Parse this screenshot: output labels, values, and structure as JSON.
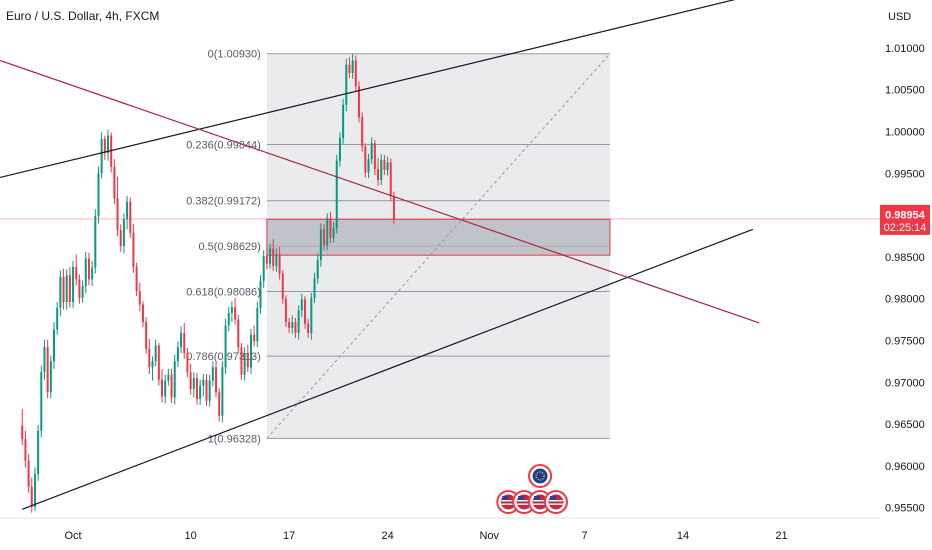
{
  "header": {
    "title": "Euro / U.S. Dollar, 4h, FXCM"
  },
  "colors": {
    "up": "#089981",
    "down": "#f23645",
    "fib_bg": "#e6e7ea",
    "fib_line": "#9598a1",
    "zone_fill": "#b2b5be",
    "zone_border": "#f23645",
    "channel": "#131722",
    "downtrend": "#a52a3a",
    "price_badge": "#f23645"
  },
  "chart_data": {
    "type": "candlestick",
    "title": "Euro / U.S. Dollar, 4h, FXCM",
    "currency_label": "USD",
    "y_ticks": [
      "1.01000",
      "1.00500",
      "1.00000",
      "0.99500",
      "0.98500",
      "0.98000",
      "0.97500",
      "0.97000",
      "0.96500",
      "0.96000",
      "0.95500"
    ],
    "y_tick_values": [
      1.01,
      1.005,
      1.0,
      0.995,
      0.985,
      0.98,
      0.975,
      0.97,
      0.965,
      0.96,
      0.955
    ],
    "ylim": [
      0.954,
      1.0125
    ],
    "x_ticks": [
      "Oct",
      "10",
      "17",
      "24",
      "Nov",
      "7",
      "14",
      "21"
    ],
    "x_tick_index": [
      16,
      53,
      84,
      115,
      147,
      177,
      208,
      239
    ],
    "x_range": [
      -7,
      270
    ],
    "last_price": "0.98954",
    "last_price_value": 0.98954,
    "countdown": "02:25:14",
    "fibonacci": {
      "levels": [
        {
          "label": "0(1.00930)",
          "value": 1.0093
        },
        {
          "label": "0.236(0.99844)",
          "value": 0.99844
        },
        {
          "label": "0.382(0.99172)",
          "value": 0.99172
        },
        {
          "label": "0.5(0.98629)",
          "value": 0.98629
        },
        {
          "label": "0.618(0.98086)",
          "value": 0.98086
        },
        {
          "label": "0.786(0.97313)",
          "value": 0.97313
        },
        {
          "label": "1(0.96328)",
          "value": 0.96328
        }
      ],
      "from_index": 77,
      "to_index": 185
    },
    "zone": {
      "from_index": 77,
      "to_index": 185,
      "top": 0.9895,
      "bottom": 0.9852
    },
    "trendlines": [
      {
        "name": "channel-upper",
        "points": [
          [
            -7,
            0.9945
          ],
          [
            231,
            1.0164
          ]
        ]
      },
      {
        "name": "channel-lower",
        "points": [
          [
            0,
            0.9548
          ],
          [
            230,
            0.9883
          ]
        ]
      },
      {
        "name": "downtrend",
        "points": [
          [
            -7,
            1.0085
          ],
          [
            232,
            0.9771
          ]
        ]
      },
      {
        "name": "fib-diagonal",
        "points": [
          [
            77,
            0.96328
          ],
          [
            185,
            1.0093
          ]
        ]
      }
    ],
    "event_icons": [
      {
        "index": 153,
        "row": 0
      },
      {
        "index": 158,
        "row": 0
      },
      {
        "index": 163,
        "row": 0
      },
      {
        "index": 168,
        "row": 0
      },
      {
        "index": 163,
        "row": 1
      }
    ],
    "candles_ohlc": [
      [
        0.9648,
        0.9668,
        0.9625,
        0.9632
      ],
      [
        0.9632,
        0.9642,
        0.9598,
        0.9606
      ],
      [
        0.9606,
        0.9614,
        0.9568,
        0.9575
      ],
      [
        0.9575,
        0.9586,
        0.9544,
        0.9551
      ],
      [
        0.9551,
        0.9598,
        0.9546,
        0.959
      ],
      [
        0.959,
        0.9649,
        0.9582,
        0.9642
      ],
      [
        0.9642,
        0.972,
        0.9634,
        0.9712
      ],
      [
        0.9712,
        0.9751,
        0.9703,
        0.9742
      ],
      [
        0.9742,
        0.9751,
        0.9681,
        0.9688
      ],
      [
        0.9688,
        0.9732,
        0.9681,
        0.9725
      ],
      [
        0.9725,
        0.9772,
        0.9716,
        0.9763
      ],
      [
        0.9763,
        0.9796,
        0.9757,
        0.9789
      ],
      [
        0.9789,
        0.9834,
        0.9779,
        0.9826
      ],
      [
        0.9826,
        0.9836,
        0.9787,
        0.9796
      ],
      [
        0.9796,
        0.9835,
        0.9787,
        0.9828
      ],
      [
        0.9828,
        0.9838,
        0.9789,
        0.9796
      ],
      [
        0.9796,
        0.9845,
        0.9789,
        0.9838
      ],
      [
        0.9838,
        0.9853,
        0.9816,
        0.9823
      ],
      [
        0.9823,
        0.9829,
        0.9794,
        0.9801
      ],
      [
        0.9801,
        0.9822,
        0.9795,
        0.9815
      ],
      [
        0.9815,
        0.9856,
        0.9806,
        0.9848
      ],
      [
        0.9848,
        0.9855,
        0.9816,
        0.9823
      ],
      [
        0.9823,
        0.9845,
        0.9815,
        0.9837
      ],
      [
        0.9837,
        0.9907,
        0.983,
        0.9899
      ],
      [
        0.9899,
        0.9958,
        0.989,
        0.995
      ],
      [
        0.995,
        0.9999,
        0.9944,
        0.9991
      ],
      [
        0.9991,
        0.9995,
        0.9966,
        0.9974
      ],
      [
        0.9974,
        1.0002,
        0.9965,
        0.9995
      ],
      [
        0.9995,
        0.9999,
        0.9951,
        0.9958
      ],
      [
        0.9958,
        0.9967,
        0.9913,
        0.992
      ],
      [
        0.992,
        0.9946,
        0.9875,
        0.9882
      ],
      [
        0.9882,
        0.9889,
        0.9856,
        0.9863
      ],
      [
        0.9863,
        0.9902,
        0.9854,
        0.9895
      ],
      [
        0.9895,
        0.9923,
        0.9883,
        0.9916
      ],
      [
        0.9916,
        0.9921,
        0.9873,
        0.9879
      ],
      [
        0.9879,
        0.9889,
        0.9831,
        0.9838
      ],
      [
        0.9838,
        0.9843,
        0.9803,
        0.9809
      ],
      [
        0.9809,
        0.9819,
        0.9785,
        0.9793
      ],
      [
        0.9793,
        0.9797,
        0.9766,
        0.9772
      ],
      [
        0.9772,
        0.9778,
        0.9734,
        0.974
      ],
      [
        0.974,
        0.9752,
        0.971,
        0.9718
      ],
      [
        0.9718,
        0.9731,
        0.9702,
        0.9725
      ],
      [
        0.9725,
        0.9751,
        0.9719,
        0.9744
      ],
      [
        0.9744,
        0.9747,
        0.9696,
        0.9703
      ],
      [
        0.9703,
        0.9716,
        0.9676,
        0.9683
      ],
      [
        0.9683,
        0.9709,
        0.9675,
        0.9702
      ],
      [
        0.9702,
        0.9716,
        0.9696,
        0.9709
      ],
      [
        0.9709,
        0.9716,
        0.9675,
        0.9682
      ],
      [
        0.9682,
        0.9733,
        0.9674,
        0.9725
      ],
      [
        0.9725,
        0.9749,
        0.9718,
        0.9742
      ],
      [
        0.9742,
        0.9767,
        0.9735,
        0.9759
      ],
      [
        0.9759,
        0.9771,
        0.9728,
        0.9735
      ],
      [
        0.9735,
        0.9741,
        0.9706,
        0.9712
      ],
      [
        0.9712,
        0.9722,
        0.9685,
        0.9692
      ],
      [
        0.9692,
        0.9712,
        0.9682,
        0.9705
      ],
      [
        0.9705,
        0.9711,
        0.9673,
        0.968
      ],
      [
        0.968,
        0.9703,
        0.9673,
        0.9696
      ],
      [
        0.9696,
        0.971,
        0.9683,
        0.9703
      ],
      [
        0.9703,
        0.971,
        0.9672,
        0.9678
      ],
      [
        0.9678,
        0.9709,
        0.9671,
        0.9702
      ],
      [
        0.9702,
        0.9725,
        0.9695,
        0.9718
      ],
      [
        0.9718,
        0.9724,
        0.9682,
        0.9688
      ],
      [
        0.9688,
        0.9693,
        0.9653,
        0.966
      ],
      [
        0.966,
        0.9725,
        0.9652,
        0.9718
      ],
      [
        0.9718,
        0.9776,
        0.971,
        0.9768
      ],
      [
        0.9768,
        0.979,
        0.9761,
        0.9783
      ],
      [
        0.9783,
        0.9797,
        0.9772,
        0.979
      ],
      [
        0.979,
        0.9801,
        0.9769,
        0.9775
      ],
      [
        0.9775,
        0.9781,
        0.9735,
        0.9742
      ],
      [
        0.9742,
        0.9747,
        0.9703,
        0.9709
      ],
      [
        0.9709,
        0.9742,
        0.9702,
        0.9735
      ],
      [
        0.9735,
        0.9745,
        0.9712,
        0.9718
      ],
      [
        0.9718,
        0.9764,
        0.971,
        0.9757
      ],
      [
        0.9757,
        0.9768,
        0.9743,
        0.9749
      ],
      [
        0.9749,
        0.9796,
        0.9742,
        0.9789
      ],
      [
        0.9789,
        0.9828,
        0.9782,
        0.9821
      ],
      [
        0.9821,
        0.9858,
        0.9813,
        0.9851
      ],
      [
        0.9851,
        0.9861,
        0.9835,
        0.9842
      ],
      [
        0.9842,
        0.9866,
        0.9836,
        0.986
      ],
      [
        0.986,
        0.9871,
        0.9833,
        0.9839
      ],
      [
        0.9839,
        0.986,
        0.9832,
        0.9853
      ],
      [
        0.9853,
        0.9862,
        0.9823,
        0.983
      ],
      [
        0.983,
        0.9834,
        0.9794,
        0.98
      ],
      [
        0.98,
        0.9804,
        0.9766,
        0.9772
      ],
      [
        0.9772,
        0.9777,
        0.9759,
        0.9765
      ],
      [
        0.9765,
        0.978,
        0.9758,
        0.9772
      ],
      [
        0.9772,
        0.9777,
        0.9753,
        0.9759
      ],
      [
        0.9759,
        0.9792,
        0.9751,
        0.9786
      ],
      [
        0.9786,
        0.9806,
        0.9778,
        0.9799
      ],
      [
        0.9799,
        0.9803,
        0.9764,
        0.977
      ],
      [
        0.977,
        0.9776,
        0.9753,
        0.9759
      ],
      [
        0.9759,
        0.9807,
        0.9751,
        0.9801
      ],
      [
        0.9801,
        0.9831,
        0.9795,
        0.9824
      ],
      [
        0.9824,
        0.9854,
        0.9818,
        0.9846
      ],
      [
        0.9846,
        0.989,
        0.9838,
        0.9883
      ],
      [
        0.9883,
        0.9889,
        0.9858,
        0.9864
      ],
      [
        0.9864,
        0.9902,
        0.9858,
        0.9896
      ],
      [
        0.9896,
        0.9904,
        0.9866,
        0.9873
      ],
      [
        0.9873,
        0.9891,
        0.9867,
        0.9884
      ],
      [
        0.9884,
        0.9972,
        0.9878,
        0.9965
      ],
      [
        0.9965,
        0.9999,
        0.9958,
        0.9992
      ],
      [
        0.9992,
        1.0039,
        0.9985,
        1.0032
      ],
      [
        1.0032,
        1.0087,
        1.0024,
        1.008
      ],
      [
        1.008,
        1.0089,
        1.0064,
        1.007
      ],
      [
        1.007,
        1.0093,
        1.0063,
        1.0085
      ],
      [
        1.0085,
        1.0091,
        1.0048,
        1.0054
      ],
      [
        1.0054,
        1.006,
        1.0011,
        1.0017
      ],
      [
        1.0017,
        1.0023,
        0.9976,
        0.9982
      ],
      [
        0.9982,
        0.9986,
        0.9945,
        0.9951
      ],
      [
        0.9951,
        0.9973,
        0.9944,
        0.9967
      ],
      [
        0.9967,
        0.9993,
        0.9961,
        0.9986
      ],
      [
        0.9986,
        0.999,
        0.9948,
        0.9955
      ],
      [
        0.9955,
        0.9968,
        0.9935,
        0.9942
      ],
      [
        0.9942,
        0.9973,
        0.9936,
        0.9966
      ],
      [
        0.9966,
        0.9972,
        0.9948,
        0.9954
      ],
      [
        0.9954,
        0.997,
        0.9947,
        0.9963
      ],
      [
        0.9963,
        0.9968,
        0.9917,
        0.9923
      ],
      [
        0.9923,
        0.9928,
        0.9889,
        0.9895
      ]
    ]
  }
}
